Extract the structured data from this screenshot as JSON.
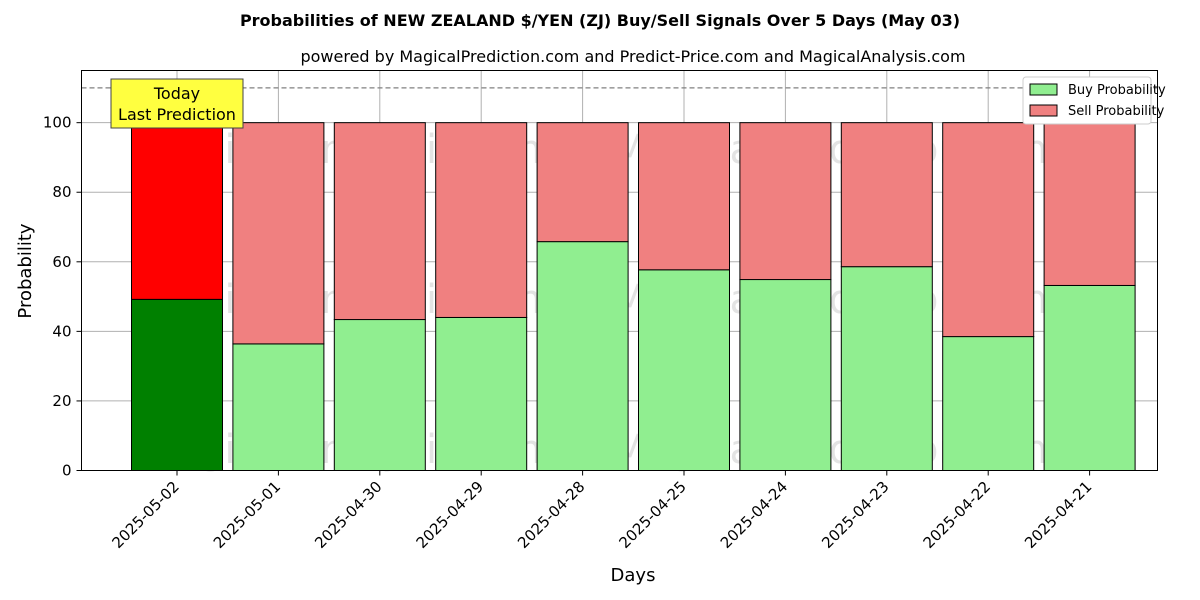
{
  "chart_data": {
    "type": "bar",
    "stacked": true,
    "title": "Probabilities of NEW ZEALAND $/YEN (ZJ) Buy/Sell Signals Over 5 Days (May 03)",
    "subtitle": "powered by MagicalPrediction.com and Predict-Price.com and MagicalAnalysis.com",
    "xlabel": "Days",
    "ylabel": "Probability",
    "ylim": [
      0,
      115
    ],
    "yticks": [
      0,
      20,
      40,
      60,
      80,
      100
    ],
    "grid": true,
    "legend_position": "top-right",
    "reference_line": 110,
    "categories": [
      "2025-05-02",
      "2025-05-01",
      "2025-04-30",
      "2025-04-29",
      "2025-04-28",
      "2025-04-25",
      "2025-04-24",
      "2025-04-23",
      "2025-04-22",
      "2025-04-21"
    ],
    "series": [
      {
        "name": "Buy Probability",
        "color": "#90ee90",
        "highlight_color": "#008000",
        "values": [
          49.2,
          36.4,
          43.4,
          44.0,
          65.8,
          57.7,
          54.9,
          58.6,
          38.5,
          53.2
        ]
      },
      {
        "name": "Sell Probability",
        "color": "#f08080",
        "highlight_color": "#ff0000",
        "values": [
          50.8,
          63.6,
          56.6,
          56.0,
          34.2,
          42.3,
          45.1,
          41.4,
          61.5,
          46.8
        ]
      }
    ],
    "annotation": {
      "lines": [
        "Today",
        "Last Prediction"
      ],
      "category": "2025-05-02",
      "bg_color": "#ffff40"
    },
    "watermarks": [
      "MagicalAnalysis.com",
      "MagicalPrediction.com"
    ]
  }
}
